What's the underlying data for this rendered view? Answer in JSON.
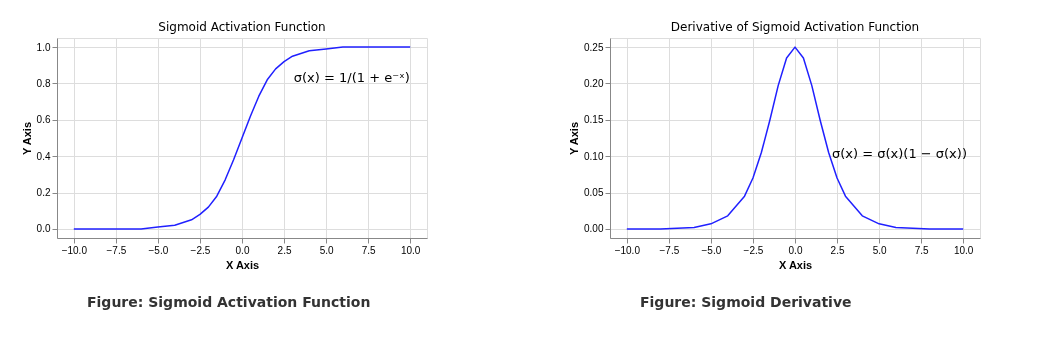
{
  "chart_data": [
    {
      "type": "line",
      "title": "Sigmoid Activation Function",
      "xlabel": "X Axis",
      "ylabel": "Y Axis",
      "x": [
        -10,
        -8,
        -6,
        -5,
        -4,
        -3,
        -2.5,
        -2,
        -1.5,
        -1,
        -0.5,
        0,
        0.5,
        1,
        1.5,
        2,
        2.5,
        3,
        4,
        5,
        6,
        8,
        10
      ],
      "series": [
        {
          "color": "#2020ff",
          "values": [
            0,
            0,
            0,
            0.01,
            0.02,
            0.05,
            0.08,
            0.12,
            0.18,
            0.27,
            0.38,
            0.5,
            0.62,
            0.73,
            0.82,
            0.88,
            0.92,
            0.95,
            0.98,
            0.99,
            1,
            1,
            1
          ]
        }
      ],
      "xlim": [
        -11,
        11
      ],
      "xticks": [
        {
          "value": -10,
          "label": "−10.0"
        },
        {
          "value": -7.5,
          "label": "−7.5"
        },
        {
          "value": -5,
          "label": "−5.0"
        },
        {
          "value": -2.5,
          "label": "−2.5"
        },
        {
          "value": 0,
          "label": "0.0"
        },
        {
          "value": 2.5,
          "label": "2.5"
        },
        {
          "value": 5,
          "label": "5.0"
        },
        {
          "value": 7.5,
          "label": "7.5"
        },
        {
          "value": 10,
          "label": "10.0"
        }
      ],
      "ylim": [
        -0.05,
        1.05
      ],
      "yticks": [
        {
          "value": 0,
          "label": "0.0"
        },
        {
          "value": 0.2,
          "label": "0.2"
        },
        {
          "value": 0.4,
          "label": "0.4"
        },
        {
          "value": 0.6,
          "label": "0.6"
        },
        {
          "value": 0.8,
          "label": "0.8"
        },
        {
          "value": 1,
          "label": "1.0"
        }
      ],
      "grid": true,
      "marker": "none",
      "line_style": "solid",
      "annotations": [
        "σ(x) = 1/(1 + e⁻ˣ)",
        "Figure: Sigmoid Activation Function"
      ]
    },
    {
      "type": "line",
      "title": "Derivative of Sigmoid Activation Function",
      "xlabel": "X Axis",
      "ylabel": "Y Axis",
      "x": [
        -10,
        -8,
        -6,
        -5,
        -4,
        -3,
        -2.5,
        -2,
        -1.5,
        -1,
        -0.5,
        0,
        0.5,
        1,
        1.5,
        2,
        2.5,
        3,
        4,
        5,
        6,
        8,
        10
      ],
      "series": [
        {
          "color": "#2020ff",
          "values": [
            0,
            0,
            0.002,
            0.007,
            0.018,
            0.045,
            0.07,
            0.105,
            0.149,
            0.197,
            0.235,
            0.25,
            0.235,
            0.197,
            0.149,
            0.105,
            0.07,
            0.045,
            0.018,
            0.007,
            0.002,
            0,
            0
          ]
        }
      ],
      "xlim": [
        -11,
        11
      ],
      "xticks": [
        {
          "value": -10,
          "label": "−10.0"
        },
        {
          "value": -7.5,
          "label": "−7.5"
        },
        {
          "value": -5,
          "label": "−5.0"
        },
        {
          "value": -2.5,
          "label": "−2.5"
        },
        {
          "value": 0,
          "label": "0.0"
        },
        {
          "value": 2.5,
          "label": "2.5"
        },
        {
          "value": 5,
          "label": "5.0"
        },
        {
          "value": 7.5,
          "label": "7.5"
        },
        {
          "value": 10,
          "label": "10.0"
        }
      ],
      "ylim": [
        -0.0125,
        0.2625
      ],
      "yticks": [
        {
          "value": 0,
          "label": "0.00"
        },
        {
          "value": 0.05,
          "label": "0.05"
        },
        {
          "value": 0.1,
          "label": "0.10"
        },
        {
          "value": 0.15,
          "label": "0.15"
        },
        {
          "value": 0.2,
          "label": "0.20"
        },
        {
          "value": 0.25,
          "label": "0.25"
        }
      ],
      "grid": true,
      "marker": "none",
      "line_style": "solid",
      "annotations": [
        "σ(x)  = σ(x)(1 − σ(x))",
        "Figure: Sigmoid Derivative"
      ]
    }
  ]
}
